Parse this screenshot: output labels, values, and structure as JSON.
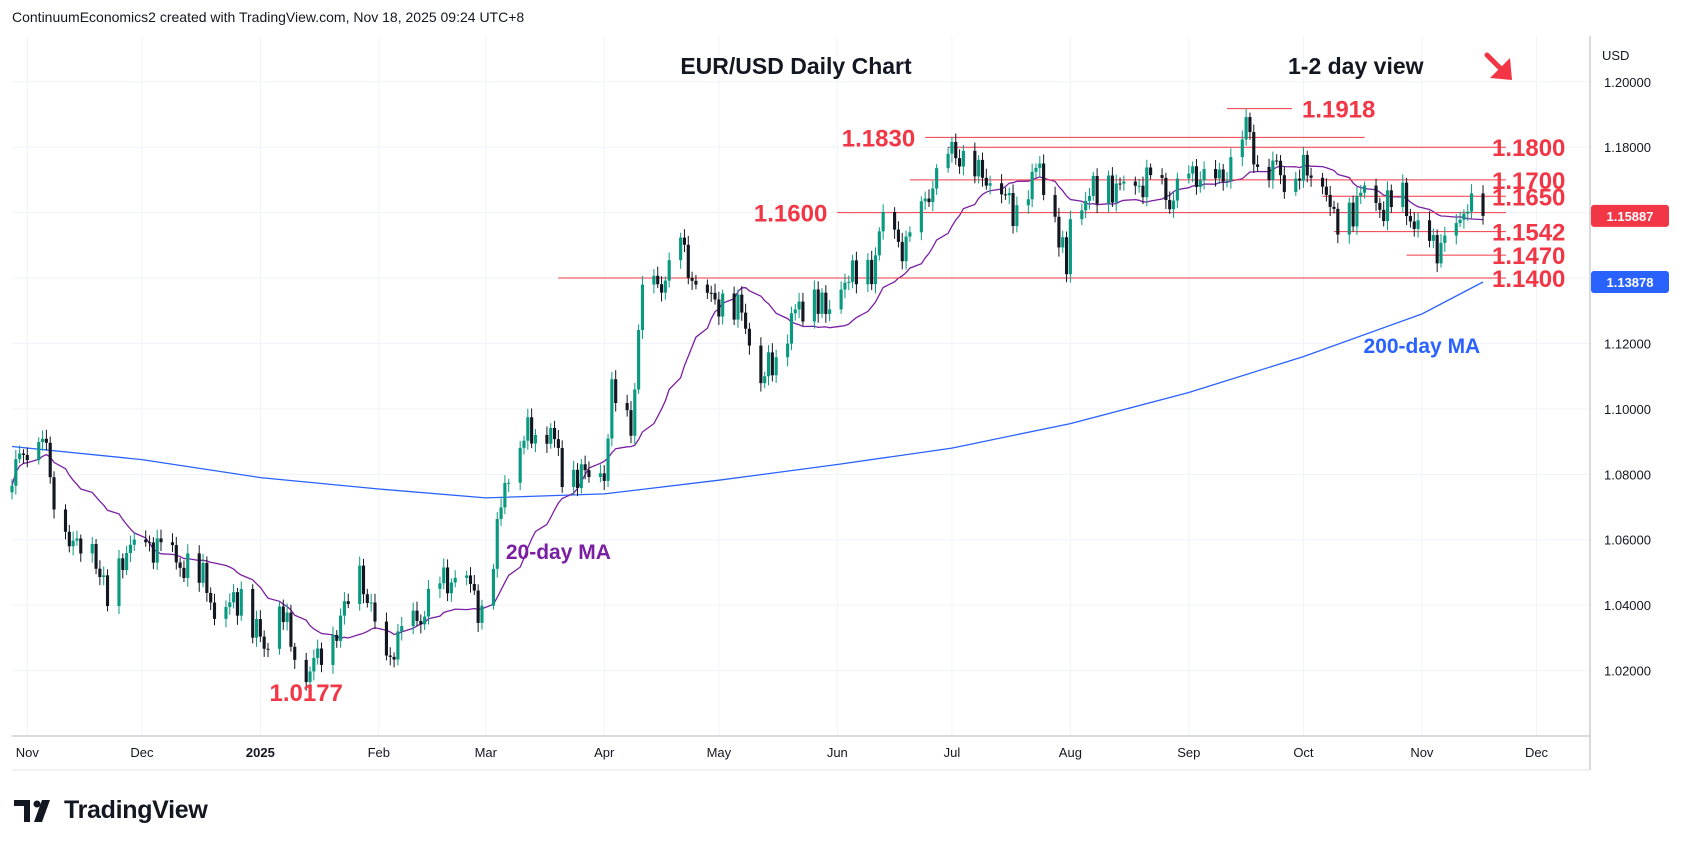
{
  "header": {
    "credit": "ContinuumEconomics2 created with TradingView.com, Nov 18, 2025 09:24 UTC+8"
  },
  "brand": {
    "name": "TradingView"
  },
  "colors": {
    "up": "#089981",
    "down": "#131722",
    "ma20": "#7b1fa2",
    "ma200": "#2962ff",
    "level_line": "#f23645",
    "label_red": "#f23645",
    "grid": "#f0f3fa",
    "axis_text": "#131722"
  },
  "chart_data": {
    "type": "candlestick",
    "title": "EUR/USD Daily Chart",
    "view_label": "1-2 day view",
    "view_icon": "arrow-down-right-icon",
    "currency": "USD",
    "x_ticks": [
      "Nov",
      "Dec",
      "2025",
      "Feb",
      "Mar",
      "Apr",
      "May",
      "Jun",
      "Jul",
      "Aug",
      "Sep",
      "Oct",
      "Nov",
      "Dec"
    ],
    "x_tick_dates": [
      "2024-11-01",
      "2024-12-01",
      "2025-01-01",
      "2025-02-01",
      "2025-03-01",
      "2025-04-01",
      "2025-05-01",
      "2025-06-01",
      "2025-07-01",
      "2025-08-01",
      "2025-09-01",
      "2025-10-01",
      "2025-11-01",
      "2025-12-01"
    ],
    "xlim": [
      "2024-10-28",
      "2025-12-15"
    ],
    "y_ticks": [
      "1.20000",
      "1.18000",
      "1.16000",
      "1.14000",
      "1.12000",
      "1.10000",
      "1.08000",
      "1.06000",
      "1.04000",
      "1.02000"
    ],
    "ylim": [
      1.0,
      1.214
    ],
    "price_badges": [
      {
        "value": "1.15887",
        "color": "#f23645"
      },
      {
        "value": "1.13878",
        "color": "#2962ff"
      }
    ],
    "levels": [
      {
        "label": "1.1918",
        "value": 1.1918,
        "start": "2025-09-11",
        "end": "2025-09-28",
        "label_side": "right"
      },
      {
        "label": "1.1830",
        "value": 1.183,
        "start": "2025-06-24",
        "end": "2025-10-17",
        "label_side": "left"
      },
      {
        "label": "1.1800",
        "value": 1.18,
        "start": "2025-06-30",
        "end": "2025-11-23",
        "label_side": "right"
      },
      {
        "label": "1.1700",
        "value": 1.17,
        "start": "2025-06-20",
        "end": "2025-11-23",
        "label_side": "right"
      },
      {
        "label": "1.1650",
        "value": 1.165,
        "start": "2025-10-06",
        "end": "2025-11-23",
        "label_side": "right"
      },
      {
        "label": "1.1600",
        "value": 1.16,
        "start": "2025-06-01",
        "end": "2025-11-23",
        "label_side": "left"
      },
      {
        "label": "1.1542",
        "value": 1.1542,
        "start": "2025-10-09",
        "end": "2025-11-23",
        "label_side": "right"
      },
      {
        "label": "1.1470",
        "value": 1.147,
        "start": "2025-10-28",
        "end": "2025-11-23",
        "label_side": "right"
      },
      {
        "label": "1.1400",
        "value": 1.14,
        "start": "2025-03-20",
        "end": "2025-11-23",
        "label_side": "right"
      }
    ],
    "annotations": [
      {
        "text": "1.0177",
        "date": "2025-01-13",
        "value": 1.0177,
        "color": "#f23645"
      },
      {
        "text": "20-day MA",
        "date": "2025-03-20",
        "value": 1.0565,
        "color": "#7b1fa2"
      },
      {
        "text": "200-day MA",
        "date": "2025-11-01",
        "value": 1.1195,
        "color": "#2962ff"
      }
    ],
    "anchors": [
      [
        "2024-10-28",
        1.081
      ],
      [
        "2024-11-01",
        1.088
      ],
      [
        "2024-11-05",
        1.093
      ],
      [
        "2024-11-08",
        1.072
      ],
      [
        "2024-11-13",
        1.058
      ],
      [
        "2024-11-18",
        1.058
      ],
      [
        "2024-11-22",
        1.041
      ],
      [
        "2024-11-27",
        1.057
      ],
      [
        "2024-12-06",
        1.058
      ],
      [
        "2024-12-10",
        1.053
      ],
      [
        "2024-12-18",
        1.047
      ],
      [
        "2024-12-20",
        1.036
      ],
      [
        "2024-12-27",
        1.043
      ],
      [
        "2025-01-02",
        1.027
      ],
      [
        "2025-01-06",
        1.041
      ],
      [
        "2025-01-10",
        1.025
      ],
      [
        "2025-01-13",
        1.0195
      ],
      [
        "2025-01-20",
        1.03
      ],
      [
        "2025-01-27",
        1.05
      ],
      [
        "2025-02-03",
        1.022
      ],
      [
        "2025-02-07",
        1.032
      ],
      [
        "2025-02-12",
        1.036
      ],
      [
        "2025-02-17",
        1.047
      ],
      [
        "2025-02-24",
        1.048
      ],
      [
        "2025-02-28",
        1.037
      ],
      [
        "2025-03-04",
        1.062
      ],
      [
        "2025-03-06",
        1.078
      ],
      [
        "2025-03-11",
        1.092
      ],
      [
        "2025-03-18",
        1.094
      ],
      [
        "2025-03-21",
        1.081
      ],
      [
        "2025-03-27",
        1.08
      ],
      [
        "2025-04-01",
        1.08
      ],
      [
        "2025-04-03",
        1.105
      ],
      [
        "2025-04-08",
        1.094
      ],
      [
        "2025-04-11",
        1.136
      ],
      [
        "2025-04-17",
        1.139
      ],
      [
        "2025-04-21",
        1.151
      ],
      [
        "2025-04-25",
        1.136
      ],
      [
        "2025-04-30",
        1.133
      ],
      [
        "2025-05-07",
        1.13
      ],
      [
        "2025-05-12",
        1.109
      ],
      [
        "2025-05-16",
        1.116
      ],
      [
        "2025-05-20",
        1.128
      ],
      [
        "2025-05-26",
        1.136
      ],
      [
        "2025-05-29",
        1.129
      ],
      [
        "2025-06-03",
        1.14
      ],
      [
        "2025-06-10",
        1.142
      ],
      [
        "2025-06-13",
        1.158
      ],
      [
        "2025-06-18",
        1.149
      ],
      [
        "2025-06-20",
        1.152
      ],
      [
        "2025-06-25",
        1.166
      ],
      [
        "2025-07-01",
        1.179
      ],
      [
        "2025-07-07",
        1.173
      ],
      [
        "2025-07-14",
        1.167
      ],
      [
        "2025-07-17",
        1.16
      ],
      [
        "2025-07-21",
        1.169
      ],
      [
        "2025-07-24",
        1.174
      ],
      [
        "2025-07-28",
        1.159
      ],
      [
        "2025-07-31",
        1.142
      ],
      [
        "2025-08-01",
        1.159
      ],
      [
        "2025-08-06",
        1.166
      ],
      [
        "2025-08-12",
        1.168
      ],
      [
        "2025-08-18",
        1.167
      ],
      [
        "2025-08-22",
        1.171
      ],
      [
        "2025-08-27",
        1.163
      ],
      [
        "2025-09-01",
        1.171
      ],
      [
        "2025-09-05",
        1.171
      ],
      [
        "2025-09-10",
        1.17
      ],
      [
        "2025-09-16",
        1.187
      ],
      [
        "2025-09-19",
        1.174
      ],
      [
        "2025-09-24",
        1.174
      ],
      [
        "2025-09-26",
        1.17
      ],
      [
        "2025-10-01",
        1.173
      ],
      [
        "2025-10-06",
        1.171
      ],
      [
        "2025-10-09",
        1.157
      ],
      [
        "2025-10-14",
        1.161
      ],
      [
        "2025-10-17",
        1.167
      ],
      [
        "2025-10-21",
        1.161
      ],
      [
        "2025-10-27",
        1.164
      ],
      [
        "2025-10-31",
        1.153
      ],
      [
        "2025-11-05",
        1.149
      ],
      [
        "2025-11-11",
        1.156
      ],
      [
        "2025-11-13",
        1.164
      ],
      [
        "2025-11-17",
        1.159
      ]
    ],
    "ma200": [
      [
        "2024-10-28",
        1.0885
      ],
      [
        "2024-12-01",
        1.0845
      ],
      [
        "2025-01-01",
        1.079
      ],
      [
        "2025-02-01",
        1.0755
      ],
      [
        "2025-03-01",
        1.0728
      ],
      [
        "2025-04-01",
        1.074
      ],
      [
        "2025-05-01",
        1.0782
      ],
      [
        "2025-06-01",
        1.083
      ],
      [
        "2025-07-01",
        1.088
      ],
      [
        "2025-08-01",
        1.0955
      ],
      [
        "2025-09-01",
        1.105
      ],
      [
        "2025-10-01",
        1.116
      ],
      [
        "2025-11-01",
        1.129
      ],
      [
        "2025-11-17",
        1.1388
      ]
    ]
  }
}
